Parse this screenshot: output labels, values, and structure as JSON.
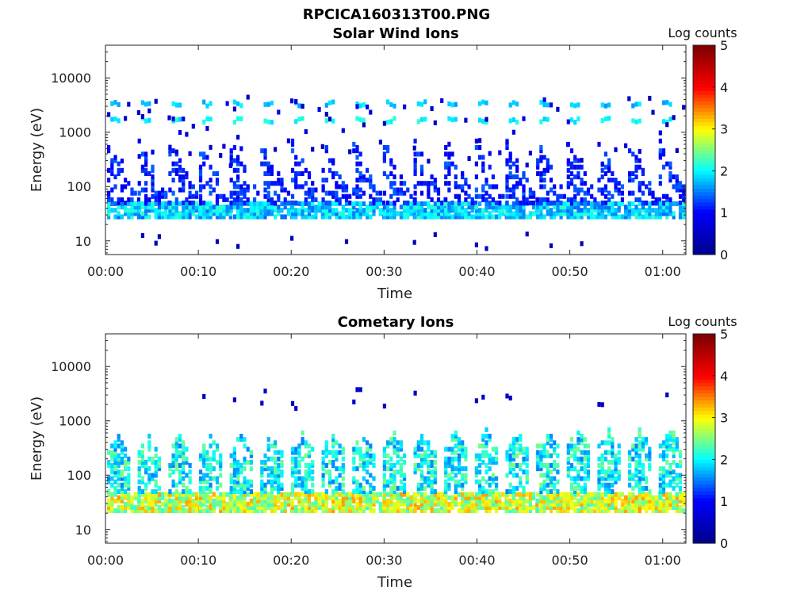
{
  "figure": {
    "title": "RPCICA160313T00.PNG"
  },
  "colors": {
    "colormap": [
      "#00008f",
      "#0000ff",
      "#00ffff",
      "#ffff00",
      "#ff0000",
      "#800000"
    ]
  },
  "chart_data": [
    {
      "type": "heatmap",
      "title": "Solar Wind Ions",
      "xlabel": "Time",
      "ylabel": "Energy (eV)",
      "y_scale": "log",
      "ylim": [
        5.6,
        40000
      ],
      "xlim_minutes": [
        0,
        62.5
      ],
      "x_ticks": [
        "00:00",
        "00:10",
        "00:20",
        "00:30",
        "00:40",
        "00:50",
        "01:00"
      ],
      "x_tick_minutes": [
        0,
        10,
        20,
        30,
        40,
        50,
        60
      ],
      "y_ticks": [
        "10",
        "100",
        "1000",
        "10000"
      ],
      "y_tick_values": [
        10,
        100,
        1000,
        10000
      ],
      "colorbar": {
        "label": "Log counts",
        "ticks": [
          "0",
          "1",
          "2",
          "3",
          "4",
          "5"
        ],
        "range": [
          0,
          5
        ]
      },
      "sweep_start_minutes": [
        0.0,
        3.3,
        6.6,
        9.9,
        13.2,
        16.5,
        19.8,
        23.1,
        26.4,
        29.7,
        33.0,
        36.3,
        39.6,
        42.9,
        46.2,
        49.5,
        52.8,
        56.1,
        59.4
      ],
      "features": {
        "low_energy_band_eV": [
          25,
          45
        ],
        "low_energy_band_log_counts": 1.8,
        "peak_1_eV": 1500,
        "peak_1_log_counts": 2.0,
        "peak_2_eV": 3000,
        "peak_2_log_counts": 1.8,
        "mid_energy_scatter_eV": [
          60,
          700
        ],
        "mid_energy_scatter_log_counts": 0.8
      }
    },
    {
      "type": "heatmap",
      "title": "Cometary Ions",
      "xlabel": "Time",
      "ylabel": "Energy (eV)",
      "y_scale": "log",
      "ylim": [
        5.6,
        40000
      ],
      "xlim_minutes": [
        0,
        62.5
      ],
      "x_ticks": [
        "00:00",
        "00:10",
        "00:20",
        "00:30",
        "00:40",
        "00:50",
        "01:00"
      ],
      "x_tick_minutes": [
        0,
        10,
        20,
        30,
        40,
        50,
        60
      ],
      "y_ticks": [
        "10",
        "100",
        "1000",
        "10000"
      ],
      "y_tick_values": [
        10,
        100,
        1000,
        10000
      ],
      "colorbar": {
        "label": "Log counts",
        "ticks": [
          "0",
          "1",
          "2",
          "3",
          "4",
          "5"
        ],
        "range": [
          0,
          5
        ]
      },
      "sweep_start_minutes": [
        0.0,
        3.3,
        6.6,
        9.9,
        13.2,
        16.5,
        19.8,
        23.1,
        26.4,
        29.7,
        33.0,
        36.3,
        39.6,
        42.9,
        46.2,
        49.5,
        52.8,
        56.1,
        59.4
      ],
      "features": {
        "low_energy_band_eV": [
          20,
          45
        ],
        "low_energy_band_log_counts": 2.8,
        "arc_energy_range_eV": [
          45,
          500
        ],
        "arc_log_counts": 2.0,
        "sparse_high_energy_eV": [
          1500,
          4000
        ],
        "sparse_high_energy_log_counts": 0.5
      }
    }
  ]
}
